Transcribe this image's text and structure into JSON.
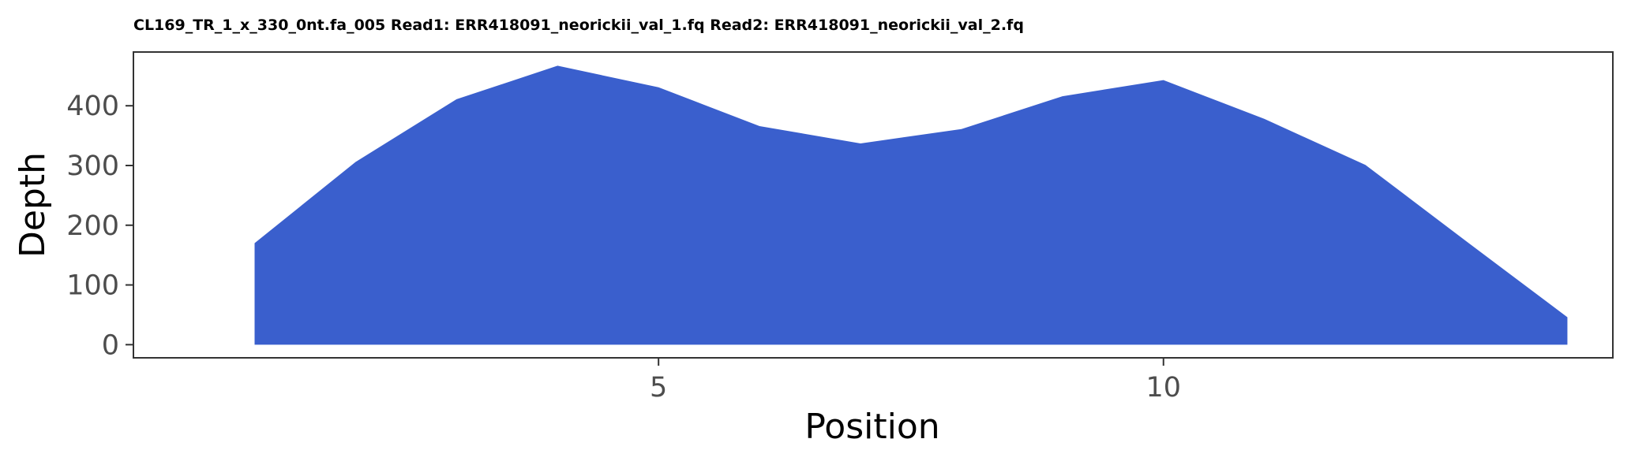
{
  "chart_data": {
    "type": "area",
    "title": "CL169_TR_1_x_330_0nt.fa_005 Read1: ERR418091_neorickii_val_1.fq Read2: ERR418091_neorickii_val_2.fq",
    "xlabel": "Position",
    "ylabel": "Depth",
    "x": [
      1,
      2,
      3,
      4,
      5,
      6,
      7,
      8,
      9,
      10,
      11,
      12,
      13,
      14
    ],
    "y": [
      170,
      306,
      411,
      467,
      431,
      366,
      337,
      361,
      416,
      443,
      378,
      301,
      173,
      46
    ],
    "xlim": [
      -0.2,
      14.45
    ],
    "ylim": [
      -22,
      490
    ],
    "x_ticks": [
      5,
      10
    ],
    "y_ticks": [
      0,
      100,
      200,
      300,
      400
    ],
    "fill_color": "#3a5fcd",
    "grid": false,
    "legend": "none"
  }
}
